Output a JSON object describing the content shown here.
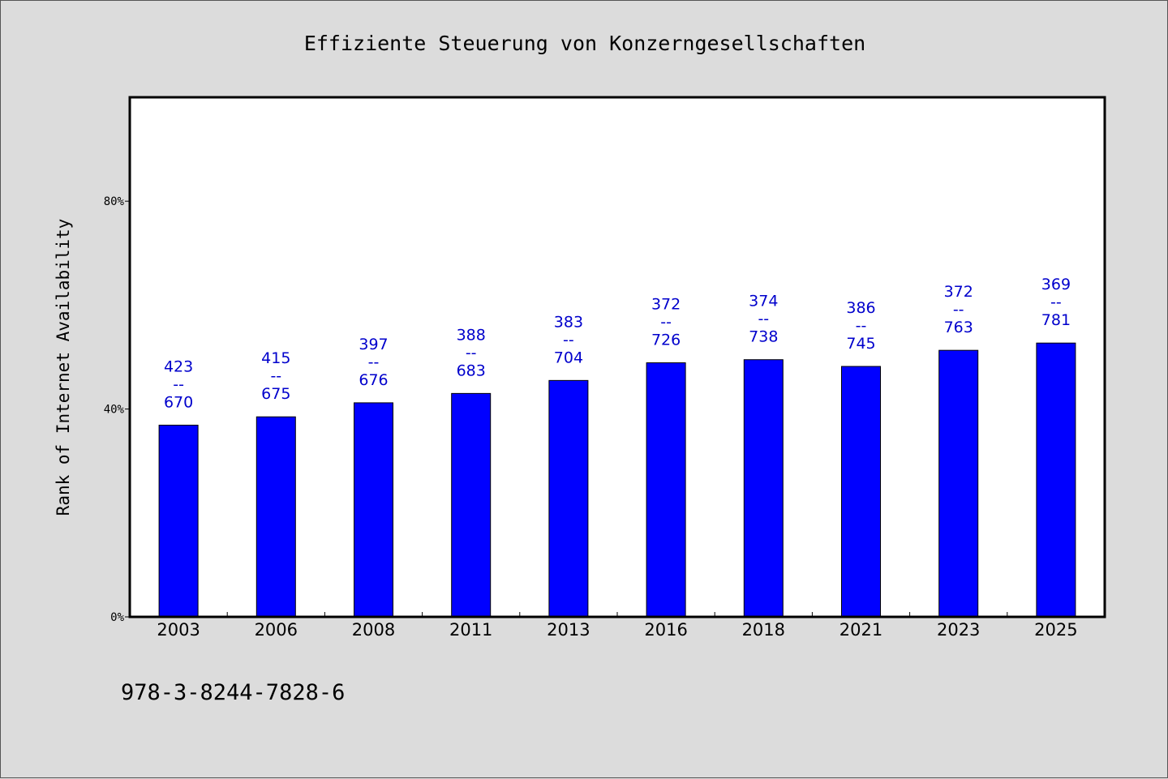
{
  "colors": {
    "background": "#dcdcdc",
    "plot_background": "#ffffff",
    "bar": "#0000ff",
    "data_label": "#0000cc"
  },
  "footnote": "978-3-8244-7828-6",
  "chart_data": {
    "type": "bar",
    "title": "Effiziente Steuerung von Konzerngesellschaften",
    "xlabel": "",
    "ylabel": "Rank of Internet Availability",
    "categories": [
      "2003",
      "2006",
      "2008",
      "2011",
      "2013",
      "2016",
      "2018",
      "2021",
      "2023",
      "2025"
    ],
    "values": [
      36.9,
      38.5,
      41.2,
      43.0,
      45.5,
      48.9,
      49.5,
      48.2,
      51.3,
      52.7
    ],
    "value_unit": "%",
    "data_labels": [
      {
        "top": "423",
        "mid": "--",
        "bottom": "670"
      },
      {
        "top": "415",
        "mid": "--",
        "bottom": "675"
      },
      {
        "top": "397",
        "mid": "--",
        "bottom": "676"
      },
      {
        "top": "388",
        "mid": "--",
        "bottom": "683"
      },
      {
        "top": "383",
        "mid": "--",
        "bottom": "704"
      },
      {
        "top": "372",
        "mid": "--",
        "bottom": "726"
      },
      {
        "top": "374",
        "mid": "--",
        "bottom": "738"
      },
      {
        "top": "386",
        "mid": "--",
        "bottom": "745"
      },
      {
        "top": "372",
        "mid": "--",
        "bottom": "763"
      },
      {
        "top": "369",
        "mid": "--",
        "bottom": "781"
      }
    ],
    "ylim": [
      0,
      100
    ],
    "yticks": [
      0,
      40,
      80
    ],
    "ytick_labels": [
      "0%",
      "40%",
      "80%"
    ],
    "grid": false,
    "legend": "none"
  }
}
